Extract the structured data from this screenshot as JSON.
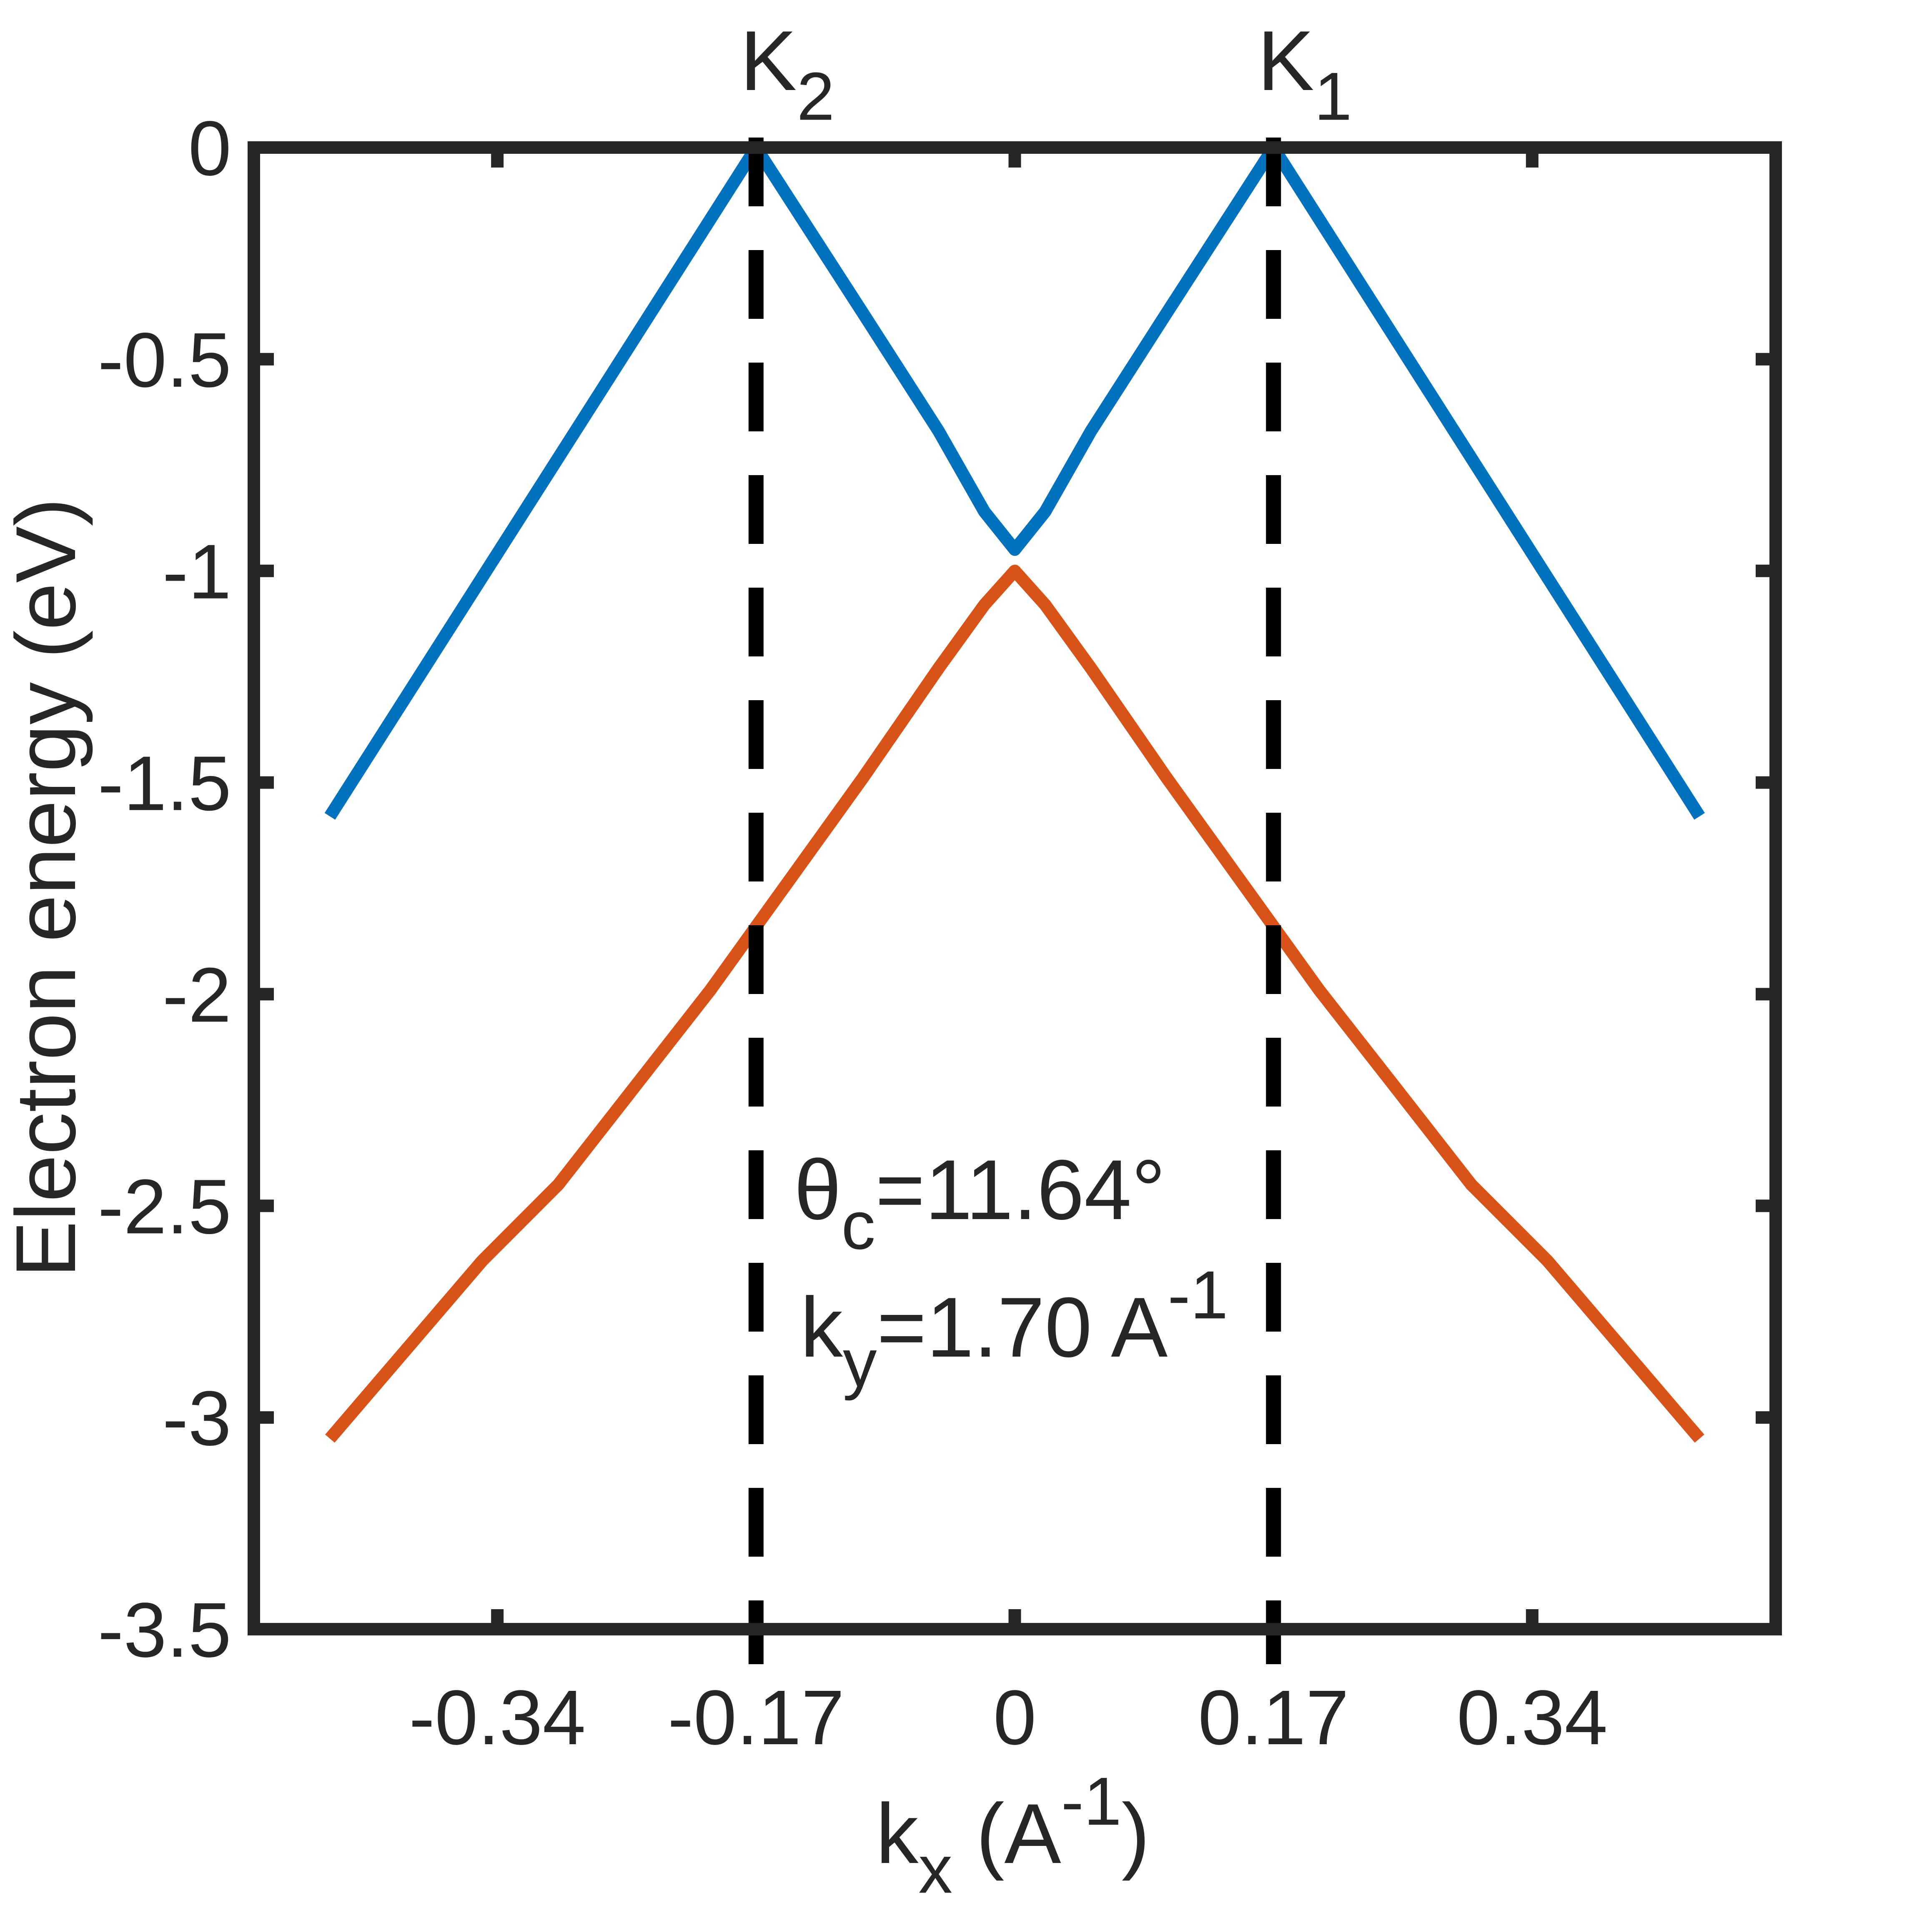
{
  "chart_data": {
    "type": "line",
    "xlabel": {
      "base": "k",
      "sub": "x",
      "after": " (A",
      "sup": "-1",
      "end": ")"
    },
    "ylabel": "Electron energy (eV)",
    "xlim": [
      -0.5,
      0.5
    ],
    "ylim": [
      -3.5,
      0
    ],
    "xticks": [
      -0.34,
      -0.17,
      0,
      0.17,
      0.34
    ],
    "yticks": [
      -3.5,
      -3,
      -2.5,
      -2,
      -1.5,
      -1,
      -0.5,
      0
    ],
    "series": [
      {
        "color": "#0072bd",
        "x": [
          -0.45,
          -0.17,
          -0.1,
          -0.05,
          -0.02,
          0,
          0.02,
          0.05,
          0.1,
          0.17,
          0.45
        ],
        "values": [
          -1.58,
          0,
          -0.39,
          -0.67,
          -0.86,
          -0.95,
          -0.86,
          -0.67,
          -0.39,
          0,
          -1.58
        ]
      },
      {
        "color": "#d95319",
        "x": [
          -0.45,
          -0.4,
          -0.35,
          -0.3,
          -0.25,
          -0.2,
          -0.17,
          -0.1,
          -0.05,
          -0.02,
          0,
          0.02,
          0.05,
          0.1,
          0.17,
          0.2,
          0.25,
          0.3,
          0.35,
          0.4,
          0.45
        ],
        "values": [
          -3.05,
          -2.84,
          -2.63,
          -2.45,
          -2.22,
          -1.99,
          -1.84,
          -1.49,
          -1.23,
          -1.08,
          -1.0,
          -1.08,
          -1.23,
          -1.49,
          -1.84,
          -1.99,
          -2.22,
          -2.45,
          -2.63,
          -2.84,
          -3.05
        ]
      }
    ],
    "vlines": [
      {
        "x": -0.17,
        "label": {
          "base": "K",
          "sub": "2"
        }
      },
      {
        "x": 0.17,
        "label": {
          "base": "K",
          "sub": "1"
        }
      }
    ],
    "annotations": [
      {
        "base": "θ",
        "sub": "c",
        "after": "=11.64°"
      },
      {
        "base": "k",
        "sub": "y",
        "after": "=1.70 A",
        "sup": "-1"
      }
    ]
  }
}
